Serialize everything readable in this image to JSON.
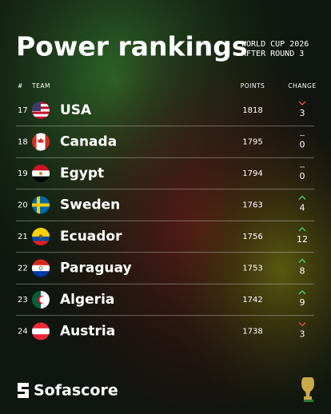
{
  "header": {
    "title": "Power rankings",
    "subtitle": [
      "WORLD CUP 2026",
      "AFTER ROUND 3"
    ]
  },
  "table": {
    "columns": [
      "#",
      "TEAM",
      "POINTS",
      "CHANGE"
    ],
    "rows": [
      {
        "rank": 17,
        "team": "USA",
        "points": 1818,
        "change": 3,
        "trend": "down"
      },
      {
        "rank": 18,
        "team": "Canada",
        "points": 1795,
        "change": 0,
        "trend": "none"
      },
      {
        "rank": 19,
        "team": "Egypt",
        "points": 1794,
        "change": 0,
        "trend": "none"
      },
      {
        "rank": 20,
        "team": "Sweden",
        "points": 1763,
        "change": 4,
        "trend": "up"
      },
      {
        "rank": 21,
        "team": "Ecuador",
        "points": 1756,
        "change": 12,
        "trend": "up"
      },
      {
        "rank": 22,
        "team": "Paraguay",
        "points": 1753,
        "change": 8,
        "trend": "up"
      },
      {
        "rank": 23,
        "team": "Algeria",
        "points": 1742,
        "change": 9,
        "trend": "up"
      },
      {
        "rank": 24,
        "team": "Austria",
        "points": 1738,
        "change": 3,
        "trend": "down"
      }
    ]
  },
  "footer": {
    "brand": "Sofascore"
  }
}
